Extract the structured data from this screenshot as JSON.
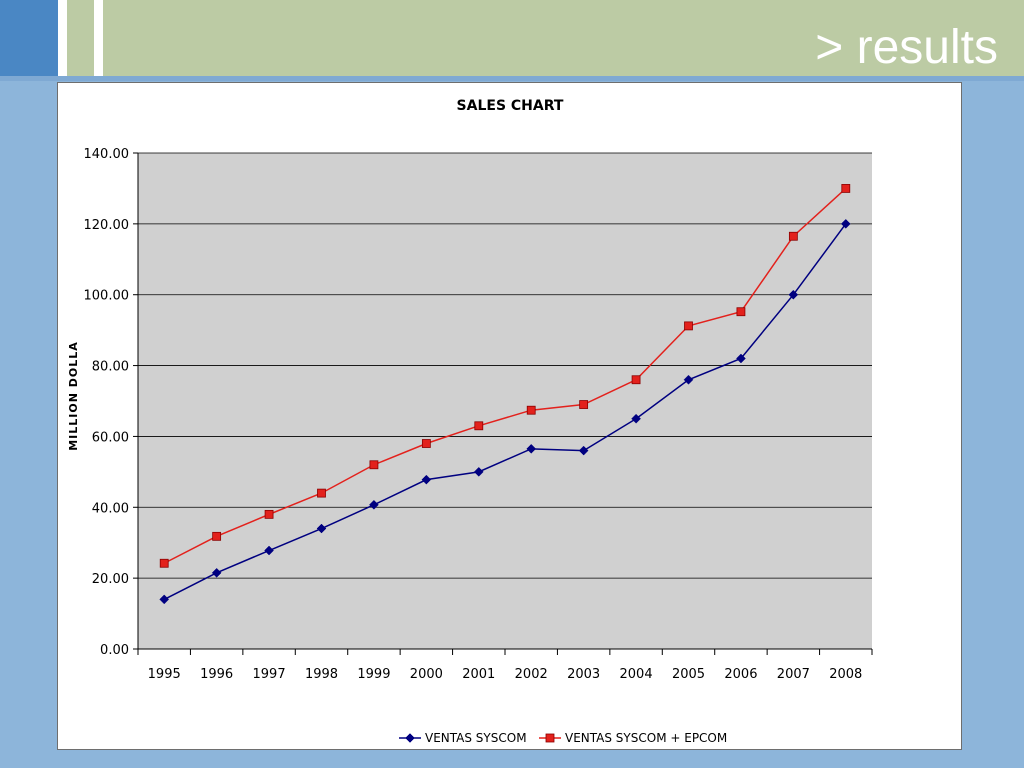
{
  "slide": {
    "title": "> results"
  },
  "colors": {
    "header_band": "#bccba4",
    "background": "#8db5da",
    "plot_area": "#d0d0d0",
    "series1": "#000080",
    "series2": "#e3211c"
  },
  "chart_data": {
    "type": "line",
    "title": "SALES CHART",
    "xlabel": "",
    "ylabel": "MILLION DOLLA",
    "ylim": [
      0,
      140
    ],
    "yticks": [
      "0.00",
      "20.00",
      "40.00",
      "60.00",
      "80.00",
      "100.00",
      "120.00",
      "140.00"
    ],
    "categories": [
      "1995",
      "1996",
      "1997",
      "1998",
      "1999",
      "2000",
      "2001",
      "2002",
      "2003",
      "2004",
      "2005",
      "2006",
      "2007",
      "2008"
    ],
    "grid": true,
    "legend_position": "bottom",
    "series": [
      {
        "name": "VENTAS SYSCOM",
        "marker": "diamond",
        "values": [
          14,
          21.5,
          27.8,
          34,
          40.7,
          47.8,
          50,
          56.5,
          56,
          65,
          76,
          82,
          100,
          120
        ]
      },
      {
        "name": "VENTAS SYSCOM + EPCOM",
        "marker": "square",
        "values": [
          24.2,
          31.8,
          38,
          44,
          52,
          58,
          63,
          67.4,
          69,
          76,
          91.2,
          95.2,
          116.5,
          130
        ]
      }
    ]
  }
}
